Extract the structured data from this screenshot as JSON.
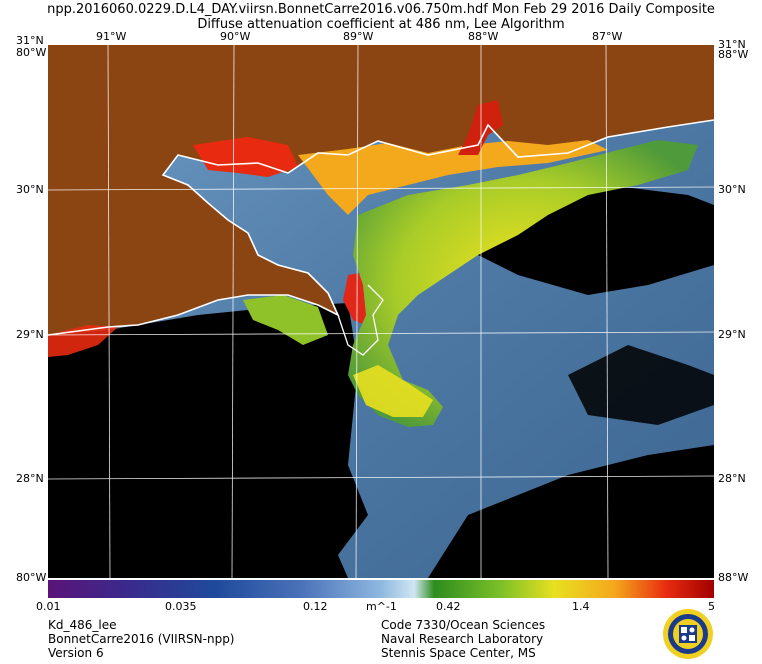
{
  "header": {
    "line1": "npp.2016060.0229.D.L4_DAY.viirsn.BonnetCarre2016.v06.750m.hdf    Mon Feb 29 2016 Daily Composite",
    "line2": "Diffuse attenuation coefficient at 486 nm, Lee Algorithm"
  },
  "axes": {
    "top_lon": [
      "91°W",
      "90°W",
      "89°W",
      "88°W",
      "87°W"
    ],
    "left_lat": [
      "31°N",
      "30°N",
      "29°N",
      "28°N"
    ],
    "right_lat": [
      "31°N",
      "30°N",
      "29°N",
      "28°N"
    ],
    "corner_tl_over": "80°W",
    "corner_tr_over": "88°W",
    "corner_bl": "80°W",
    "corner_br": "88°W",
    "corner_tr_top": "31°N"
  },
  "colorbar": {
    "ticks": [
      "0.01",
      "0.035",
      "0.12",
      "0.42",
      "1.4",
      "5"
    ],
    "unit": "m^-1",
    "colors": [
      "#5a1478",
      "#3a2a8c",
      "#1f4a9c",
      "#4a72b8",
      "#8fb8e0",
      "#cfe6f2",
      "#2e8c1e",
      "#7cc028",
      "#e8e020",
      "#f4a81c",
      "#e82a10",
      "#a00000"
    ]
  },
  "footer": {
    "left": [
      "Kd_486_lee",
      "BonnetCarre2016 (VIIRSN-npp)",
      "Version 6"
    ],
    "right": [
      "Code 7330/Ocean Sciences",
      "Naval Research Laboratory",
      "Stennis Space Center, MS"
    ]
  },
  "legend_colors": {
    "land": "#8b4513",
    "no_data": "#000000",
    "ocean_clear": "#4f7aa6",
    "coastline": "#ffffff"
  }
}
